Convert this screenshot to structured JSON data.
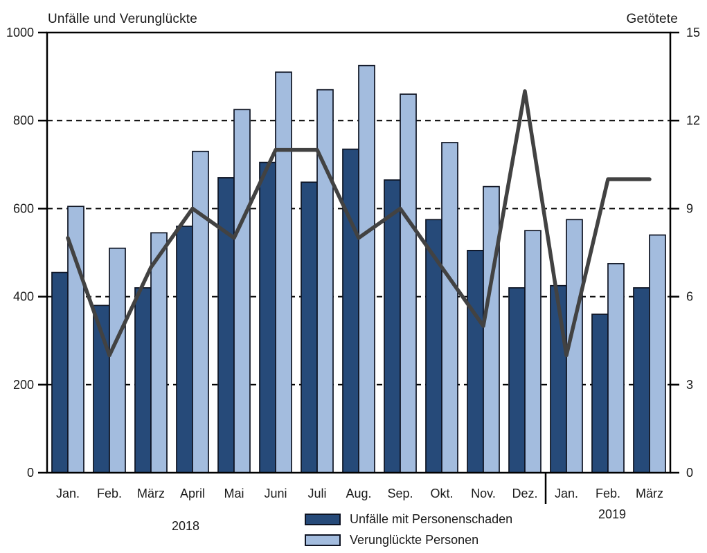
{
  "titles": {
    "left_axis": "Unfälle und Verunglückte",
    "right_axis": "Getötete"
  },
  "years": [
    {
      "label": "2018"
    },
    {
      "label": "2019"
    }
  ],
  "legend": [
    {
      "key": "unfaelle",
      "label": "Unfälle mit Personenschaden",
      "color": "#264a79"
    },
    {
      "key": "verunglueckte",
      "label": "Verunglückte Personen",
      "color": "#a3bcde"
    }
  ],
  "colors": {
    "bar_dark": "#264a79",
    "bar_light": "#a3bcde",
    "bar_border": "#0d1322",
    "line": "#424242",
    "axis": "#000000",
    "text": "#1a1a1a"
  },
  "chart_data": {
    "type": "bar",
    "subtype": "grouped bars with overlaid line on secondary axis",
    "title": "",
    "categories": [
      "Jan.",
      "Feb.",
      "März",
      "April",
      "Mai",
      "Juni",
      "Juli",
      "Aug.",
      "Sep.",
      "Okt.",
      "Nov.",
      "Dez.",
      "Jan.",
      "Feb.",
      "März"
    ],
    "category_years": [
      "2018",
      "2018",
      "2018",
      "2018",
      "2018",
      "2018",
      "2018",
      "2018",
      "2018",
      "2018",
      "2018",
      "2018",
      "2019",
      "2019",
      "2019"
    ],
    "series": [
      {
        "key": "unfaelle",
        "name": "Unfälle mit Personenschaden",
        "type": "bar",
        "axis": "left",
        "color": "#264a79",
        "values": [
          455,
          380,
          420,
          560,
          670,
          705,
          660,
          735,
          665,
          575,
          505,
          420,
          425,
          360,
          420
        ]
      },
      {
        "key": "verunglueckte",
        "name": "Verunglückte Personen",
        "type": "bar",
        "axis": "left",
        "color": "#a3bcde",
        "values": [
          605,
          510,
          545,
          730,
          825,
          910,
          870,
          925,
          860,
          750,
          650,
          550,
          575,
          475,
          540
        ]
      },
      {
        "key": "getoetete",
        "name": "Getötete",
        "type": "line",
        "axis": "right",
        "color": "#424242",
        "values": [
          8,
          4,
          7,
          9,
          8,
          11,
          11,
          8,
          9,
          7,
          5,
          13,
          4,
          10,
          10
        ]
      }
    ],
    "left_axis": {
      "label": "Unfälle und Verunglückte",
      "min": 0,
      "max": 1000,
      "ticks": [
        0,
        200,
        400,
        600,
        800,
        1000
      ]
    },
    "right_axis": {
      "label": "Getötete",
      "min": 0,
      "max": 15,
      "ticks": [
        0,
        3,
        6,
        9,
        12,
        15
      ]
    },
    "grid": "horizontal dashed at shared tick levels",
    "legend_position": "bottom center",
    "year_separator_after_index": 11
  }
}
